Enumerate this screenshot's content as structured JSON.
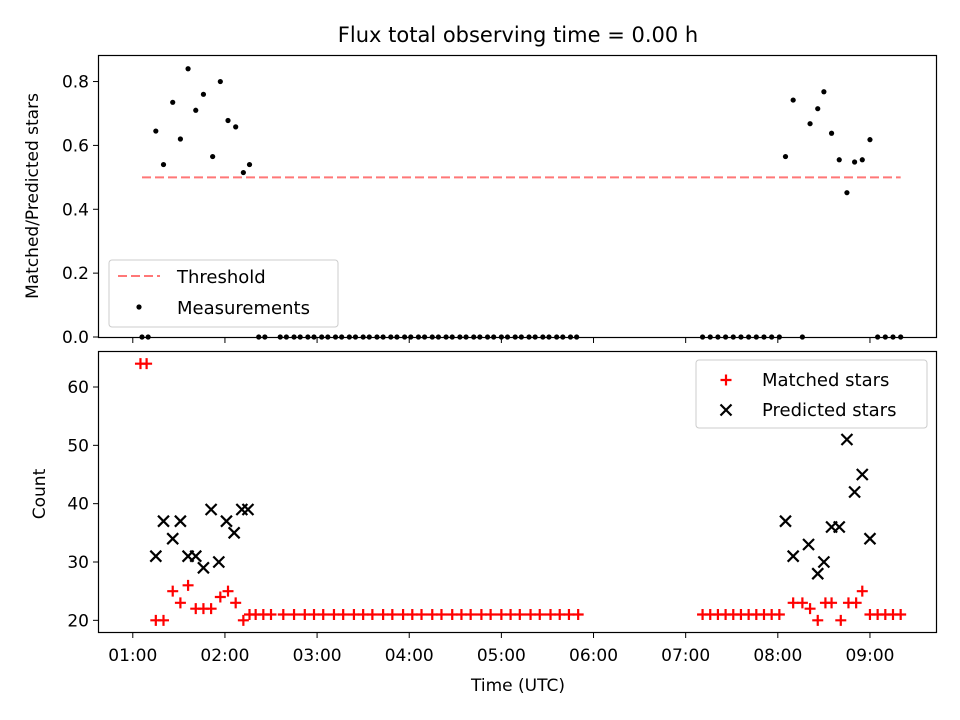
{
  "figure": {
    "title": "Flux total observing time = 0.00 h",
    "xlabel": "Time (UTC)"
  },
  "colors": {
    "threshold": "#ff7777",
    "measurement": "#000000",
    "matched": "#ff0000",
    "predicted": "#000000"
  },
  "chart_data": [
    {
      "type": "scatter",
      "panel": "top",
      "ylabel": "Matched/Predicted stars",
      "ylim": [
        0,
        0.88
      ],
      "yticks": [
        0.0,
        0.2,
        0.4,
        0.6,
        0.8
      ],
      "ytick_labels": [
        "0.0",
        "0.2",
        "0.4",
        "0.6",
        "0.8"
      ],
      "grid": false,
      "legend": "lower-left",
      "series": [
        {
          "name": "Threshold",
          "kind": "dashed-line",
          "x": [
            "01:06",
            "09:20"
          ],
          "y": [
            0.5,
            0.5
          ]
        },
        {
          "name": "Measurements",
          "kind": "points",
          "points": [
            [
              "01:06",
              0
            ],
            [
              "01:10",
              0
            ],
            [
              "01:15",
              0.645
            ],
            [
              "01:20",
              0.54
            ],
            [
              "01:26",
              0.735
            ],
            [
              "01:31",
              0.62
            ],
            [
              "01:36",
              0.84
            ],
            [
              "01:41",
              0.71
            ],
            [
              "01:46",
              0.76
            ],
            [
              "01:52",
              0.565
            ],
            [
              "01:57",
              0.8
            ],
            [
              "02:02",
              0.678
            ],
            [
              "02:07",
              0.658
            ],
            [
              "02:12",
              0.515
            ],
            [
              "02:16",
              0.54
            ],
            [
              "02:22",
              0
            ],
            [
              "02:26",
              0
            ],
            [
              "02:36",
              0
            ],
            [
              "02:40",
              0
            ],
            [
              "02:45",
              0
            ],
            [
              "02:49",
              0
            ],
            [
              "02:54",
              0
            ],
            [
              "02:58",
              0
            ],
            [
              "03:03",
              0
            ],
            [
              "03:07",
              0
            ],
            [
              "03:12",
              0
            ],
            [
              "03:16",
              0
            ],
            [
              "03:21",
              0
            ],
            [
              "03:25",
              0
            ],
            [
              "03:30",
              0
            ],
            [
              "03:34",
              0
            ],
            [
              "03:39",
              0
            ],
            [
              "03:43",
              0
            ],
            [
              "03:48",
              0
            ],
            [
              "03:52",
              0
            ],
            [
              "03:57",
              0
            ],
            [
              "04:01",
              0
            ],
            [
              "04:06",
              0
            ],
            [
              "04:10",
              0
            ],
            [
              "04:15",
              0
            ],
            [
              "04:19",
              0
            ],
            [
              "04:24",
              0
            ],
            [
              "04:28",
              0
            ],
            [
              "04:33",
              0
            ],
            [
              "04:37",
              0
            ],
            [
              "04:42",
              0
            ],
            [
              "04:46",
              0
            ],
            [
              "04:51",
              0
            ],
            [
              "04:55",
              0
            ],
            [
              "05:00",
              0
            ],
            [
              "05:04",
              0
            ],
            [
              "05:09",
              0
            ],
            [
              "05:13",
              0
            ],
            [
              "05:18",
              0
            ],
            [
              "05:22",
              0
            ],
            [
              "05:27",
              0
            ],
            [
              "05:31",
              0
            ],
            [
              "05:36",
              0
            ],
            [
              "05:40",
              0
            ],
            [
              "05:45",
              0
            ],
            [
              "05:49",
              0
            ],
            [
              "07:11",
              0
            ],
            [
              "07:16",
              0
            ],
            [
              "07:21",
              0
            ],
            [
              "07:26",
              0
            ],
            [
              "07:31",
              0
            ],
            [
              "07:36",
              0
            ],
            [
              "07:41",
              0
            ],
            [
              "07:46",
              0
            ],
            [
              "07:51",
              0
            ],
            [
              "07:56",
              0
            ],
            [
              "08:01",
              0
            ],
            [
              "08:05",
              0.565
            ],
            [
              "08:10",
              0.742
            ],
            [
              "08:16",
              0
            ],
            [
              "08:21",
              0.668
            ],
            [
              "08:26",
              0.715
            ],
            [
              "08:30",
              0.768
            ],
            [
              "08:35",
              0.638
            ],
            [
              "08:40",
              0.555
            ],
            [
              "08:45",
              0.452
            ],
            [
              "08:50",
              0.548
            ],
            [
              "08:55",
              0.555
            ],
            [
              "09:00",
              0.618
            ],
            [
              "09:05",
              0
            ],
            [
              "09:10",
              0
            ],
            [
              "09:15",
              0
            ],
            [
              "09:20",
              0
            ]
          ]
        }
      ]
    },
    {
      "type": "scatter",
      "panel": "bottom",
      "ylabel": "Count",
      "ylim": [
        18,
        66
      ],
      "yticks": [
        20,
        30,
        40,
        50,
        60
      ],
      "ytick_labels": [
        "20",
        "30",
        "40",
        "50",
        "60"
      ],
      "xlim": [
        "00:38",
        "09:43"
      ],
      "xticks": [
        "01:00",
        "02:00",
        "03:00",
        "04:00",
        "05:00",
        "06:00",
        "07:00",
        "08:00",
        "09:00"
      ],
      "xtick_labels": [
        "01:00",
        "02:00",
        "03:00",
        "04:00",
        "05:00",
        "06:00",
        "07:00",
        "08:00",
        "09:00"
      ],
      "grid": false,
      "legend": "upper-right",
      "series": [
        {
          "name": "Matched stars",
          "marker": "plus",
          "points": [
            [
              "01:05",
              64
            ],
            [
              "01:09",
              64
            ],
            [
              "01:15",
              20
            ],
            [
              "01:20",
              20
            ],
            [
              "01:26",
              25
            ],
            [
              "01:31",
              23
            ],
            [
              "01:36",
              26
            ],
            [
              "01:41",
              22
            ],
            [
              "01:46",
              22
            ],
            [
              "01:51",
              22
            ],
            [
              "01:57",
              24
            ],
            [
              "02:02",
              25
            ],
            [
              "02:07",
              23
            ],
            [
              "02:12",
              20
            ],
            [
              "02:16",
              21
            ],
            [
              "02:20",
              21
            ],
            [
              "02:25",
              21
            ],
            [
              "02:30",
              21
            ],
            [
              "02:38",
              21
            ],
            [
              "02:45",
              21
            ],
            [
              "02:52",
              21
            ],
            [
              "02:58",
              21
            ],
            [
              "03:04",
              21
            ],
            [
              "03:11",
              21
            ],
            [
              "03:17",
              21
            ],
            [
              "03:24",
              21
            ],
            [
              "03:30",
              21
            ],
            [
              "03:36",
              21
            ],
            [
              "03:43",
              21
            ],
            [
              "03:49",
              21
            ],
            [
              "03:56",
              21
            ],
            [
              "04:02",
              21
            ],
            [
              "04:08",
              21
            ],
            [
              "04:15",
              21
            ],
            [
              "04:21",
              21
            ],
            [
              "04:28",
              21
            ],
            [
              "04:34",
              21
            ],
            [
              "04:40",
              21
            ],
            [
              "04:47",
              21
            ],
            [
              "04:53",
              21
            ],
            [
              "05:00",
              21
            ],
            [
              "05:06",
              21
            ],
            [
              "05:12",
              21
            ],
            [
              "05:19",
              21
            ],
            [
              "05:25",
              21
            ],
            [
              "05:32",
              21
            ],
            [
              "05:38",
              21
            ],
            [
              "05:44",
              21
            ],
            [
              "05:50",
              21
            ],
            [
              "07:11",
              21
            ],
            [
              "07:16",
              21
            ],
            [
              "07:21",
              21
            ],
            [
              "07:26",
              21
            ],
            [
              "07:31",
              21
            ],
            [
              "07:36",
              21
            ],
            [
              "07:41",
              21
            ],
            [
              "07:46",
              21
            ],
            [
              "07:51",
              21
            ],
            [
              "07:56",
              21
            ],
            [
              "08:01",
              21
            ],
            [
              "08:10",
              23
            ],
            [
              "08:16",
              23
            ],
            [
              "08:21",
              22
            ],
            [
              "08:26",
              20
            ],
            [
              "08:31",
              23
            ],
            [
              "08:35",
              23
            ],
            [
              "08:41",
              20
            ],
            [
              "08:46",
              23
            ],
            [
              "08:51",
              23
            ],
            [
              "08:55",
              25
            ],
            [
              "09:00",
              21
            ],
            [
              "09:05",
              21
            ],
            [
              "09:10",
              21
            ],
            [
              "09:15",
              21
            ],
            [
              "09:20",
              21
            ]
          ]
        },
        {
          "name": "Predicted stars",
          "marker": "x",
          "points": [
            [
              "01:15",
              31
            ],
            [
              "01:20",
              37
            ],
            [
              "01:26",
              34
            ],
            [
              "01:31",
              37
            ],
            [
              "01:36",
              31
            ],
            [
              "01:41",
              31
            ],
            [
              "01:46",
              29
            ],
            [
              "01:51",
              39
            ],
            [
              "01:56",
              30
            ],
            [
              "02:01",
              37
            ],
            [
              "02:06",
              35
            ],
            [
              "02:11",
              39
            ],
            [
              "02:15",
              39
            ],
            [
              "08:05",
              37
            ],
            [
              "08:10",
              31
            ],
            [
              "08:20",
              33
            ],
            [
              "08:26",
              28
            ],
            [
              "08:30",
              30
            ],
            [
              "08:35",
              36
            ],
            [
              "08:40",
              36
            ],
            [
              "08:45",
              51
            ],
            [
              "08:50",
              42
            ],
            [
              "08:55",
              45
            ],
            [
              "09:00",
              34
            ]
          ]
        }
      ]
    }
  ]
}
